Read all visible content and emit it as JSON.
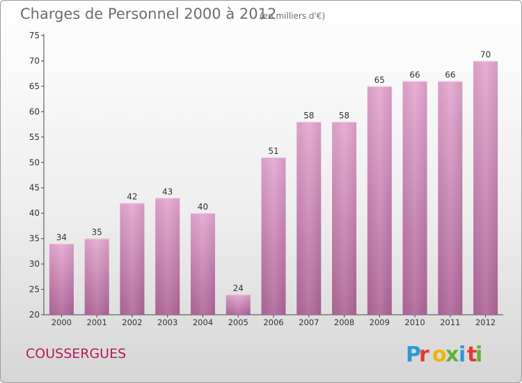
{
  "chart_data": {
    "type": "bar",
    "title": "Charges de Personnel 2000 à 2012",
    "subtitle": "(en milliers d'€)",
    "categories": [
      "2000",
      "2001",
      "2002",
      "2003",
      "2004",
      "2005",
      "2006",
      "2007",
      "2008",
      "2009",
      "2010",
      "2011",
      "2012"
    ],
    "values": [
      34,
      35,
      42,
      43,
      40,
      24,
      51,
      58,
      58,
      65,
      66,
      66,
      70
    ],
    "ylim": [
      20,
      75
    ],
    "yticks": [
      20,
      25,
      30,
      35,
      40,
      45,
      50,
      55,
      60,
      65,
      70,
      75
    ],
    "bar_color": "#c77eaa",
    "grid": false
  },
  "commune": "COUSSERGUES",
  "logo": {
    "letters": [
      "P",
      "r",
      "o",
      "x",
      "i",
      "t",
      "i"
    ],
    "colors": [
      "#2c9ad6",
      "#e53a2f",
      "#f2b400",
      "#5fb23a",
      "#2c9ad6",
      "#e53a2f",
      "#5fb23a"
    ]
  }
}
